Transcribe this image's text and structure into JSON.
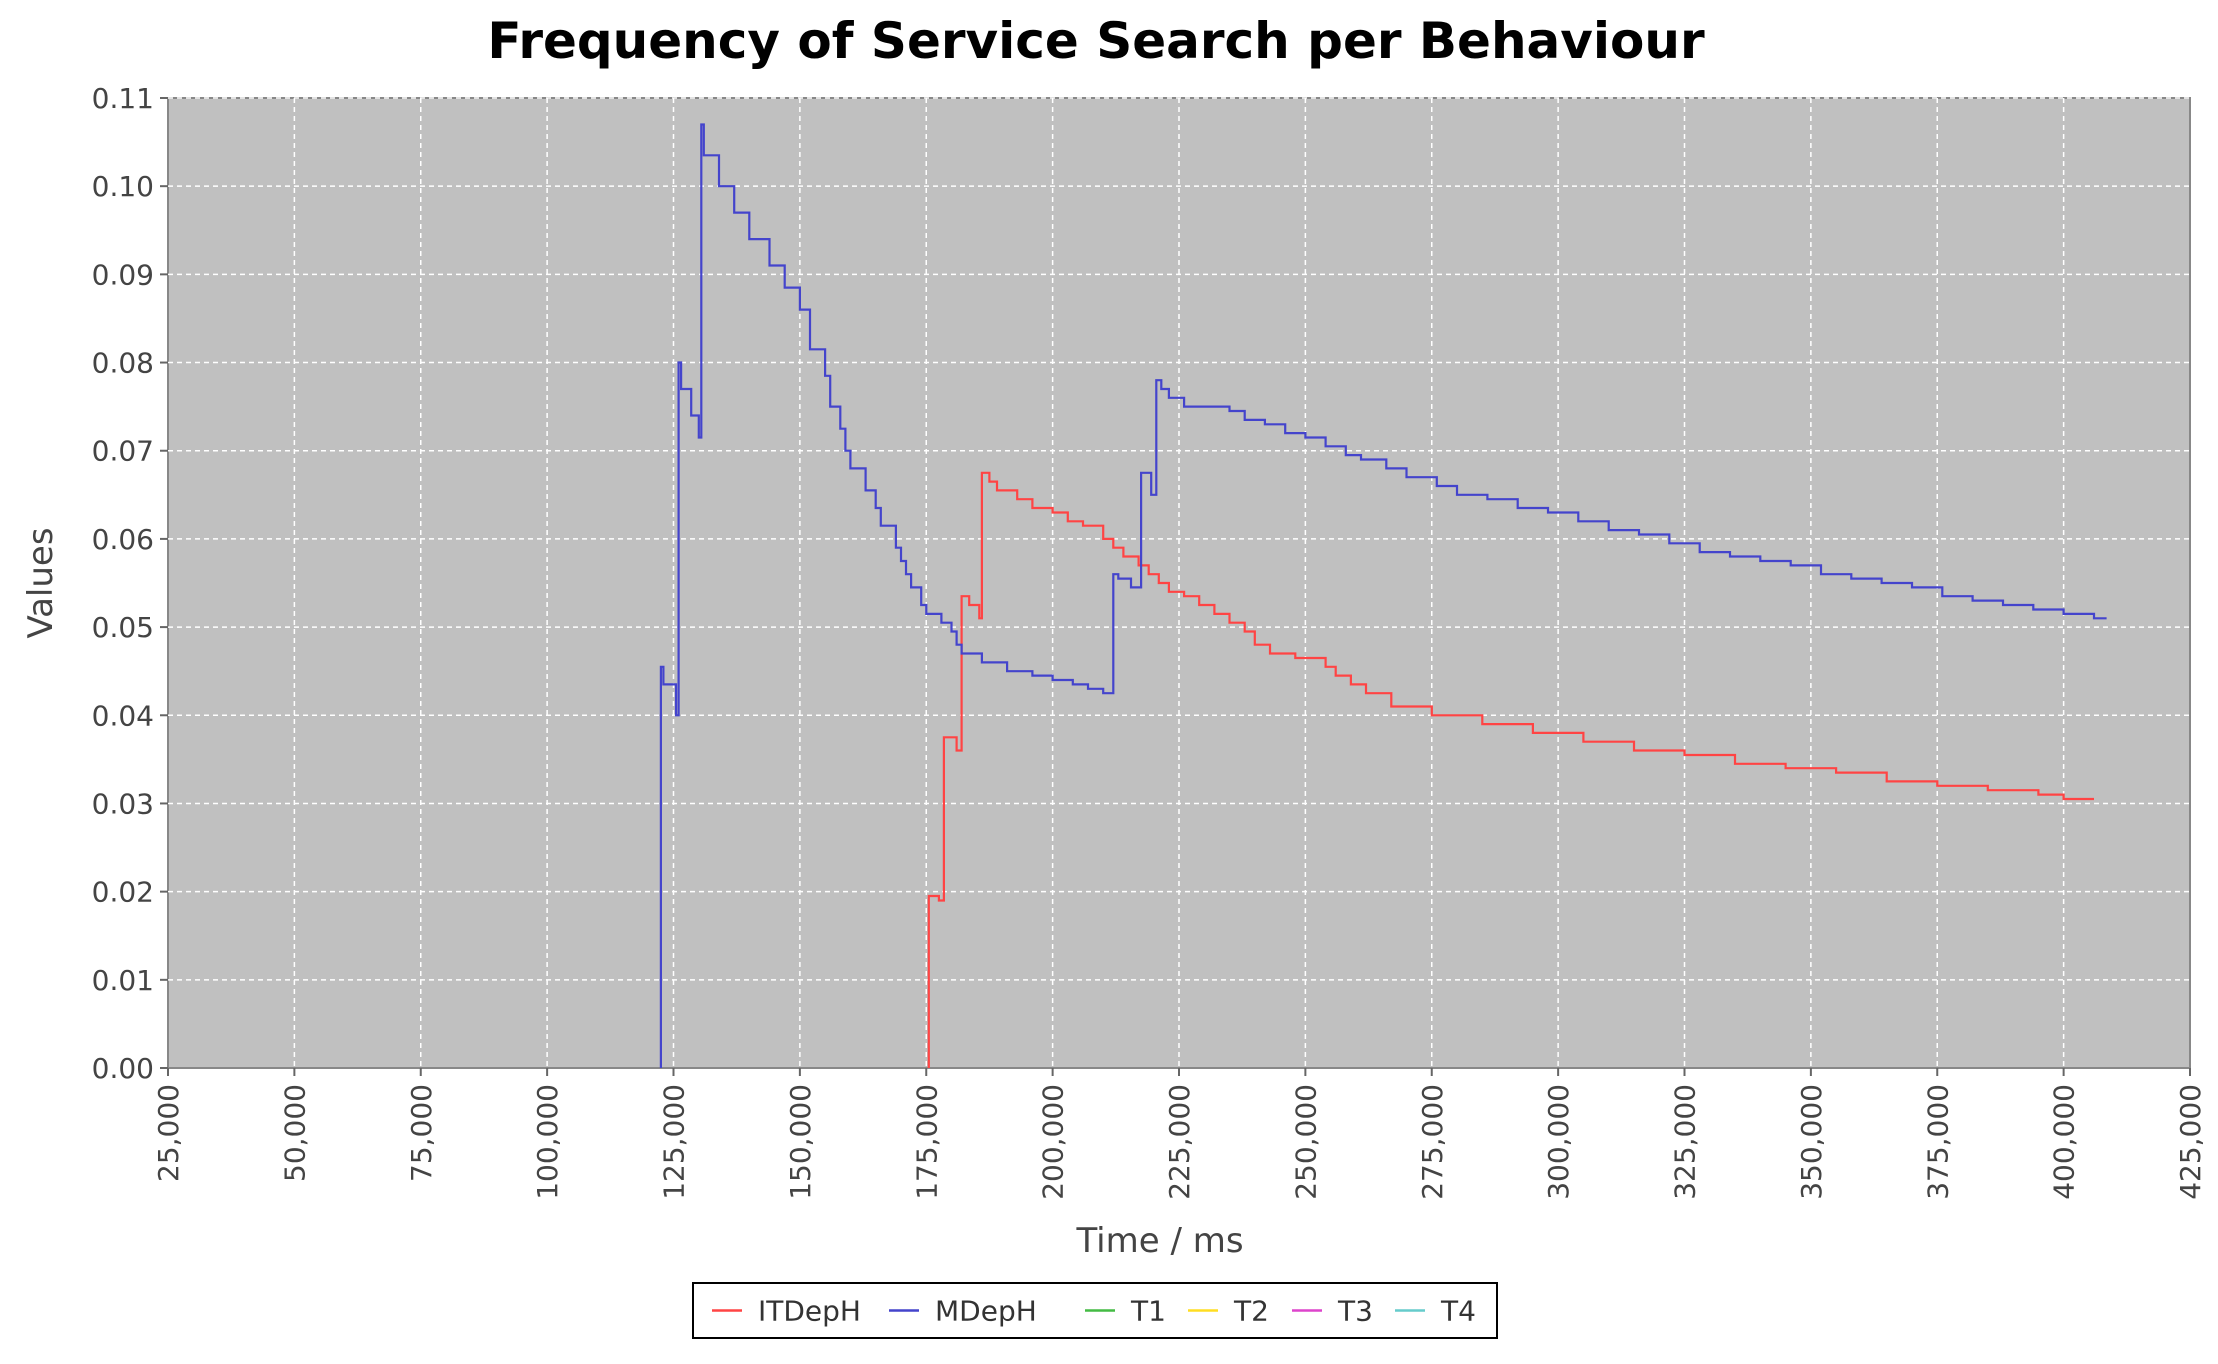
{
  "chart_data": {
    "type": "line",
    "title": "Frequency of Service Search per Behaviour",
    "xlabel": "Time / ms",
    "ylabel": "Values",
    "xlim": [
      25000,
      425000
    ],
    "ylim": [
      0,
      0.11
    ],
    "xticks": [
      25000,
      50000,
      75000,
      100000,
      125000,
      150000,
      175000,
      200000,
      225000,
      250000,
      275000,
      300000,
      325000,
      350000,
      375000,
      400000,
      425000
    ],
    "xtick_labels": [
      "25,000",
      "50,000",
      "75,000",
      "100,000",
      "125,000",
      "150,000",
      "175,000",
      "200,000",
      "225,000",
      "250,000",
      "275,000",
      "300,000",
      "325,000",
      "350,000",
      "375,000",
      "400,000",
      "425,000"
    ],
    "yticks": [
      0,
      0.01,
      0.02,
      0.03,
      0.04,
      0.05,
      0.06,
      0.07,
      0.08,
      0.09,
      0.1,
      0.11
    ],
    "ytick_labels": [
      "0.00",
      "0.01",
      "0.02",
      "0.03",
      "0.04",
      "0.05",
      "0.06",
      "0.07",
      "0.08",
      "0.09",
      "0.10",
      "0.11"
    ],
    "grid": true,
    "background": "#c0c0c0",
    "legend_position": "bottom-center",
    "step": true,
    "series": [
      {
        "name": "ITDepH",
        "color": "#ff4444",
        "points": [
          [
            175500,
            0.0
          ],
          [
            175500,
            0.0195
          ],
          [
            177500,
            0.0195
          ],
          [
            177500,
            0.019
          ],
          [
            178500,
            0.019
          ],
          [
            178500,
            0.0375
          ],
          [
            181000,
            0.0375
          ],
          [
            181000,
            0.036
          ],
          [
            182000,
            0.036
          ],
          [
            182000,
            0.0535
          ],
          [
            183500,
            0.0535
          ],
          [
            183500,
            0.0525
          ],
          [
            185500,
            0.0525
          ],
          [
            185500,
            0.051
          ],
          [
            186000,
            0.051
          ],
          [
            186000,
            0.0675
          ],
          [
            187500,
            0.0675
          ],
          [
            187500,
            0.0665
          ],
          [
            189000,
            0.0665
          ],
          [
            189000,
            0.0655
          ],
          [
            193000,
            0.0655
          ],
          [
            193000,
            0.0645
          ],
          [
            196000,
            0.0645
          ],
          [
            196000,
            0.0635
          ],
          [
            200000,
            0.0635
          ],
          [
            200000,
            0.063
          ],
          [
            203000,
            0.063
          ],
          [
            203000,
            0.062
          ],
          [
            206000,
            0.062
          ],
          [
            206000,
            0.0615
          ],
          [
            210000,
            0.0615
          ],
          [
            210000,
            0.06
          ],
          [
            212000,
            0.06
          ],
          [
            212000,
            0.059
          ],
          [
            214000,
            0.059
          ],
          [
            214000,
            0.058
          ],
          [
            217000,
            0.058
          ],
          [
            217000,
            0.057
          ],
          [
            219000,
            0.057
          ],
          [
            219000,
            0.056
          ],
          [
            221000,
            0.056
          ],
          [
            221000,
            0.055
          ],
          [
            223000,
            0.055
          ],
          [
            223000,
            0.054
          ],
          [
            226000,
            0.054
          ],
          [
            226000,
            0.0535
          ],
          [
            229000,
            0.0535
          ],
          [
            229000,
            0.0525
          ],
          [
            232000,
            0.0525
          ],
          [
            232000,
            0.0515
          ],
          [
            235000,
            0.0515
          ],
          [
            235000,
            0.0505
          ],
          [
            238000,
            0.0505
          ],
          [
            238000,
            0.0495
          ],
          [
            240000,
            0.0495
          ],
          [
            240000,
            0.048
          ],
          [
            243000,
            0.048
          ],
          [
            243000,
            0.047
          ],
          [
            248000,
            0.047
          ],
          [
            248000,
            0.0465
          ],
          [
            254000,
            0.0465
          ],
          [
            254000,
            0.0455
          ],
          [
            256000,
            0.0455
          ],
          [
            256000,
            0.0445
          ],
          [
            259000,
            0.0445
          ],
          [
            259000,
            0.0435
          ],
          [
            262000,
            0.0435
          ],
          [
            262000,
            0.0425
          ],
          [
            267000,
            0.0425
          ],
          [
            267000,
            0.041
          ],
          [
            275000,
            0.041
          ],
          [
            275000,
            0.04
          ],
          [
            285000,
            0.04
          ],
          [
            285000,
            0.039
          ],
          [
            295000,
            0.039
          ],
          [
            295000,
            0.038
          ],
          [
            305000,
            0.038
          ],
          [
            305000,
            0.037
          ],
          [
            315000,
            0.037
          ],
          [
            315000,
            0.036
          ],
          [
            325000,
            0.036
          ],
          [
            325000,
            0.0355
          ],
          [
            335000,
            0.0355
          ],
          [
            335000,
            0.0345
          ],
          [
            345000,
            0.0345
          ],
          [
            345000,
            0.034
          ],
          [
            355000,
            0.034
          ],
          [
            355000,
            0.0335
          ],
          [
            365000,
            0.0335
          ],
          [
            365000,
            0.0325
          ],
          [
            375000,
            0.0325
          ],
          [
            375000,
            0.032
          ],
          [
            385000,
            0.032
          ],
          [
            385000,
            0.0315
          ],
          [
            395000,
            0.0315
          ],
          [
            395000,
            0.031
          ],
          [
            400000,
            0.031
          ],
          [
            400000,
            0.0305
          ],
          [
            406000,
            0.0305
          ]
        ]
      },
      {
        "name": "MDepH",
        "color": "#4444cc",
        "points": [
          [
            122500,
            0.0
          ],
          [
            122500,
            0.0455
          ],
          [
            123000,
            0.0455
          ],
          [
            123000,
            0.0435
          ],
          [
            125500,
            0.0435
          ],
          [
            125500,
            0.04
          ],
          [
            126000,
            0.04
          ],
          [
            126000,
            0.08
          ],
          [
            126500,
            0.08
          ],
          [
            126500,
            0.077
          ],
          [
            128500,
            0.077
          ],
          [
            128500,
            0.074
          ],
          [
            130000,
            0.074
          ],
          [
            130000,
            0.0715
          ],
          [
            130500,
            0.0715
          ],
          [
            130500,
            0.107
          ],
          [
            131000,
            0.107
          ],
          [
            131000,
            0.1035
          ],
          [
            134000,
            0.1035
          ],
          [
            134000,
            0.1
          ],
          [
            137000,
            0.1
          ],
          [
            137000,
            0.097
          ],
          [
            140000,
            0.097
          ],
          [
            140000,
            0.094
          ],
          [
            144000,
            0.094
          ],
          [
            144000,
            0.091
          ],
          [
            147000,
            0.091
          ],
          [
            147000,
            0.0885
          ],
          [
            150000,
            0.0885
          ],
          [
            150000,
            0.086
          ],
          [
            152000,
            0.086
          ],
          [
            152000,
            0.0815
          ],
          [
            155000,
            0.0815
          ],
          [
            155000,
            0.0785
          ],
          [
            156000,
            0.0785
          ],
          [
            156000,
            0.075
          ],
          [
            158000,
            0.075
          ],
          [
            158000,
            0.0725
          ],
          [
            159000,
            0.0725
          ],
          [
            159000,
            0.07
          ],
          [
            160000,
            0.07
          ],
          [
            160000,
            0.068
          ],
          [
            163000,
            0.068
          ],
          [
            163000,
            0.0655
          ],
          [
            165000,
            0.0655
          ],
          [
            165000,
            0.0635
          ],
          [
            166000,
            0.0635
          ],
          [
            166000,
            0.0615
          ],
          [
            169000,
            0.0615
          ],
          [
            169000,
            0.059
          ],
          [
            170000,
            0.059
          ],
          [
            170000,
            0.0575
          ],
          [
            171000,
            0.0575
          ],
          [
            171000,
            0.056
          ],
          [
            172000,
            0.056
          ],
          [
            172000,
            0.0545
          ],
          [
            174000,
            0.0545
          ],
          [
            174000,
            0.0525
          ],
          [
            175000,
            0.0525
          ],
          [
            175000,
            0.0515
          ],
          [
            178000,
            0.0515
          ],
          [
            178000,
            0.0505
          ],
          [
            180000,
            0.0505
          ],
          [
            180000,
            0.0495
          ],
          [
            181000,
            0.0495
          ],
          [
            181000,
            0.048
          ],
          [
            182000,
            0.048
          ],
          [
            182000,
            0.047
          ],
          [
            186000,
            0.047
          ],
          [
            186000,
            0.046
          ],
          [
            191000,
            0.046
          ],
          [
            191000,
            0.045
          ],
          [
            196000,
            0.045
          ],
          [
            196000,
            0.0445
          ],
          [
            200000,
            0.0445
          ],
          [
            200000,
            0.044
          ],
          [
            204000,
            0.044
          ],
          [
            204000,
            0.0435
          ],
          [
            207000,
            0.0435
          ],
          [
            207000,
            0.043
          ],
          [
            210000,
            0.043
          ],
          [
            210000,
            0.0425
          ],
          [
            212000,
            0.0425
          ],
          [
            212000,
            0.056
          ],
          [
            213000,
            0.056
          ],
          [
            213000,
            0.0555
          ],
          [
            215500,
            0.0555
          ],
          [
            215500,
            0.0545
          ],
          [
            217500,
            0.0545
          ],
          [
            217500,
            0.0675
          ],
          [
            219500,
            0.0675
          ],
          [
            219500,
            0.065
          ],
          [
            220500,
            0.065
          ],
          [
            220500,
            0.078
          ],
          [
            221500,
            0.078
          ],
          [
            221500,
            0.077
          ],
          [
            223000,
            0.077
          ],
          [
            223000,
            0.076
          ],
          [
            226000,
            0.076
          ],
          [
            226000,
            0.075
          ],
          [
            235000,
            0.075
          ],
          [
            235000,
            0.0745
          ],
          [
            238000,
            0.0745
          ],
          [
            238000,
            0.0735
          ],
          [
            242000,
            0.0735
          ],
          [
            242000,
            0.073
          ],
          [
            246000,
            0.073
          ],
          [
            246000,
            0.072
          ],
          [
            250000,
            0.072
          ],
          [
            250000,
            0.0715
          ],
          [
            254000,
            0.0715
          ],
          [
            254000,
            0.0705
          ],
          [
            258000,
            0.0705
          ],
          [
            258000,
            0.0695
          ],
          [
            261000,
            0.0695
          ],
          [
            261000,
            0.069
          ],
          [
            266000,
            0.069
          ],
          [
            266000,
            0.068
          ],
          [
            270000,
            0.068
          ],
          [
            270000,
            0.067
          ],
          [
            276000,
            0.067
          ],
          [
            276000,
            0.066
          ],
          [
            280000,
            0.066
          ],
          [
            280000,
            0.065
          ],
          [
            286000,
            0.065
          ],
          [
            286000,
            0.0645
          ],
          [
            292000,
            0.0645
          ],
          [
            292000,
            0.0635
          ],
          [
            298000,
            0.0635
          ],
          [
            298000,
            0.063
          ],
          [
            304000,
            0.063
          ],
          [
            304000,
            0.062
          ],
          [
            310000,
            0.062
          ],
          [
            310000,
            0.061
          ],
          [
            316000,
            0.061
          ],
          [
            316000,
            0.0605
          ],
          [
            322000,
            0.0605
          ],
          [
            322000,
            0.0595
          ],
          [
            328000,
            0.0595
          ],
          [
            328000,
            0.0585
          ],
          [
            334000,
            0.0585
          ],
          [
            334000,
            0.058
          ],
          [
            340000,
            0.058
          ],
          [
            340000,
            0.0575
          ],
          [
            346000,
            0.0575
          ],
          [
            346000,
            0.057
          ],
          [
            352000,
            0.057
          ],
          [
            352000,
            0.056
          ],
          [
            358000,
            0.056
          ],
          [
            358000,
            0.0555
          ],
          [
            364000,
            0.0555
          ],
          [
            364000,
            0.055
          ],
          [
            370000,
            0.055
          ],
          [
            370000,
            0.0545
          ],
          [
            376000,
            0.0545
          ],
          [
            376000,
            0.0535
          ],
          [
            382000,
            0.0535
          ],
          [
            382000,
            0.053
          ],
          [
            388000,
            0.053
          ],
          [
            388000,
            0.0525
          ],
          [
            394000,
            0.0525
          ],
          [
            394000,
            0.052
          ],
          [
            400000,
            0.052
          ],
          [
            400000,
            0.0515
          ],
          [
            406000,
            0.0515
          ],
          [
            406000,
            0.051
          ],
          [
            408500,
            0.051
          ]
        ]
      },
      {
        "name": "T1",
        "color": "#44bb44",
        "points": []
      },
      {
        "name": "T2",
        "color": "#ffdd22",
        "points": []
      },
      {
        "name": "T3",
        "color": "#dd44cc",
        "points": []
      },
      {
        "name": "T4",
        "color": "#66cccc",
        "points": []
      }
    ]
  }
}
